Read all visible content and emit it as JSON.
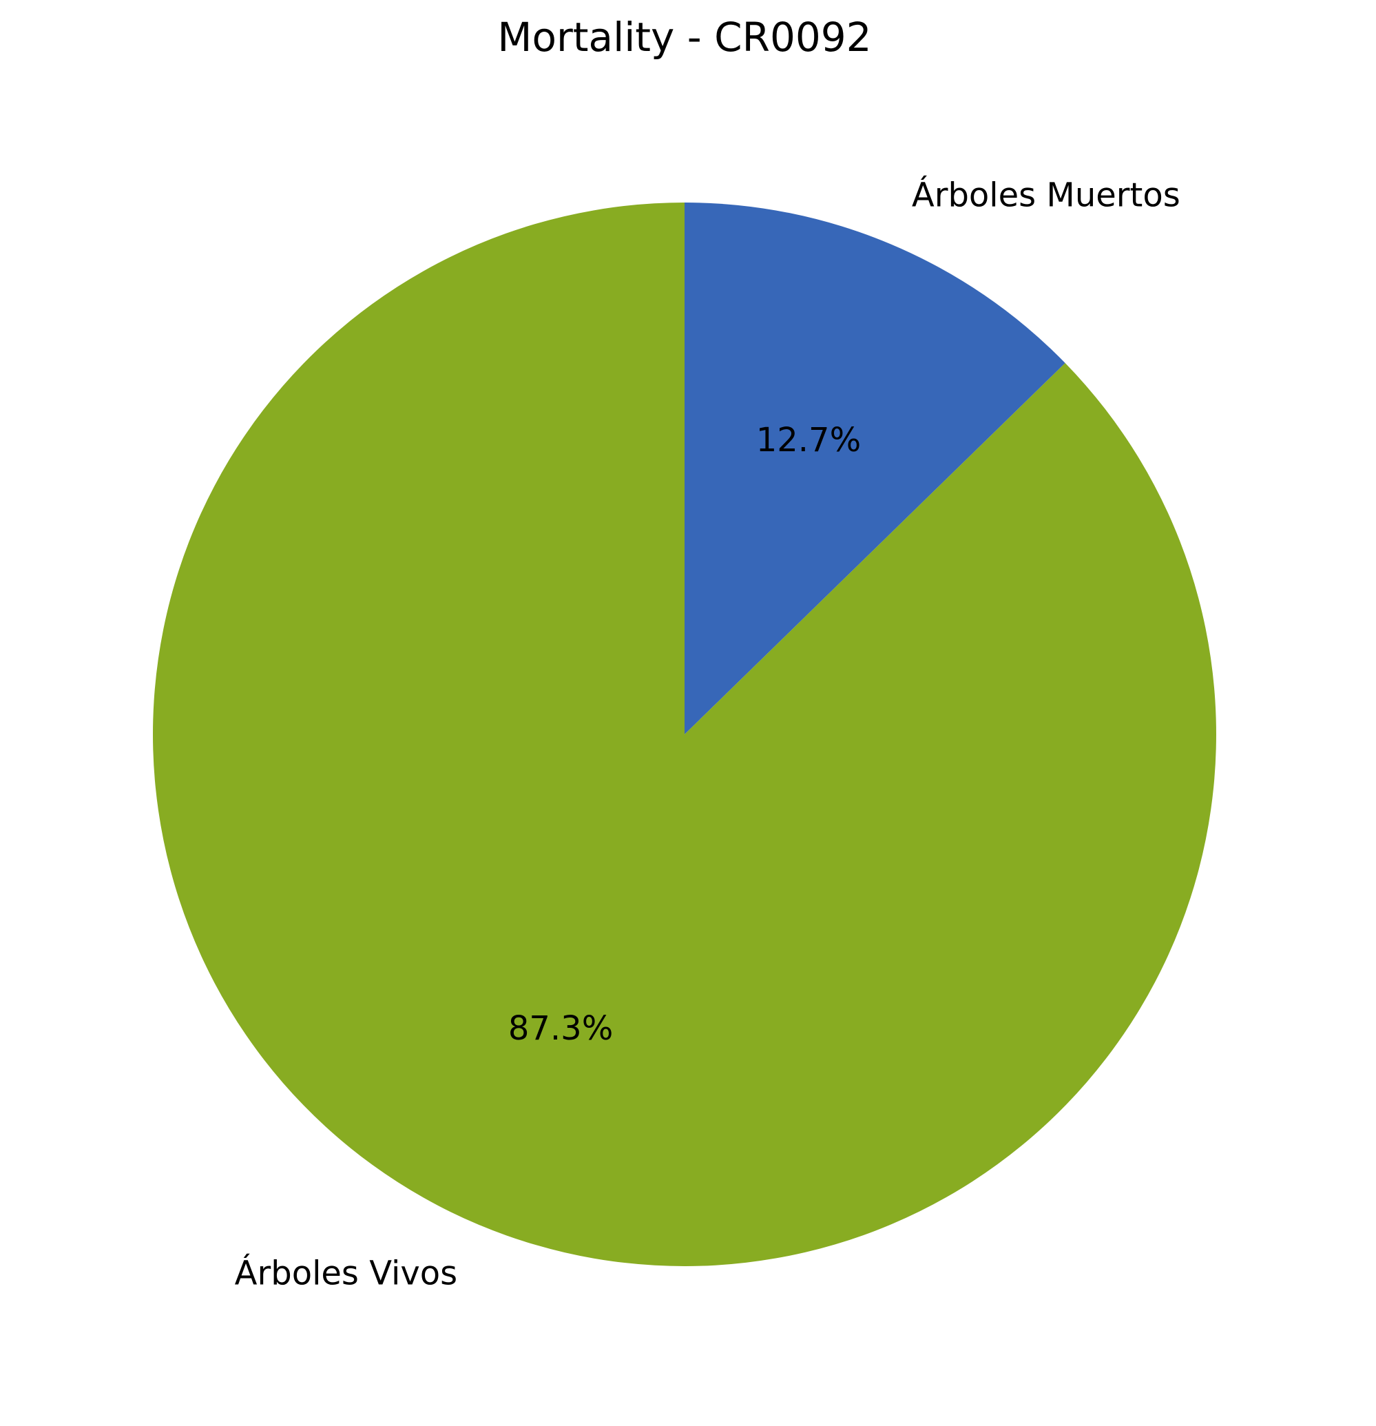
{
  "chart_data": {
    "type": "pie",
    "title": "Mortality - CR0092",
    "slices": [
      {
        "label": "Árboles Muertos",
        "value": 12.7,
        "pct_label": "12.7%",
        "color": "#3767b8"
      },
      {
        "label": "Árboles Vivos",
        "value": 87.3,
        "pct_label": "87.3%",
        "color": "#88ac22"
      }
    ],
    "start_angle_deg": 90,
    "direction": "clockwise",
    "legend": "none"
  }
}
